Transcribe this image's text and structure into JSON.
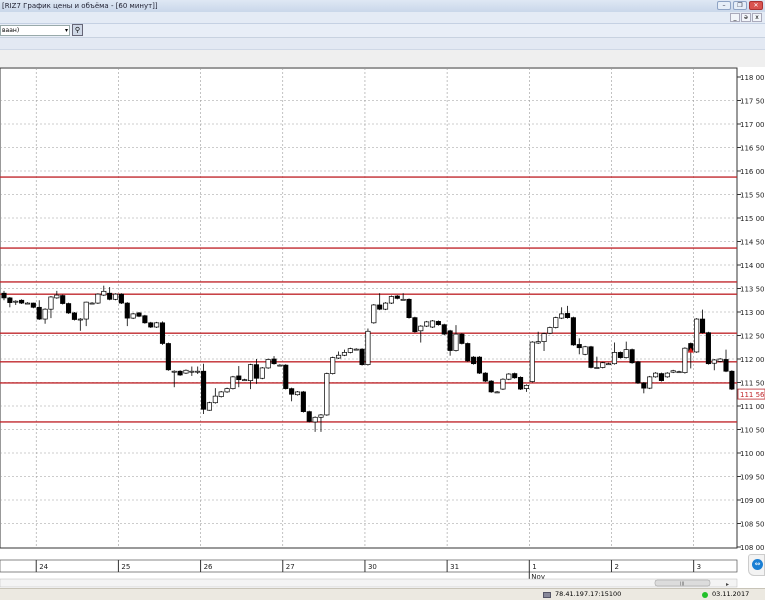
{
  "window": {
    "title": "[RIZ7 График цены и объёма - [60 минут]]",
    "minimize": "–",
    "restore": "❐",
    "close": "✕"
  },
  "mdi": {
    "minimize": "_",
    "restore": "ǝ",
    "close": "x"
  },
  "toolbar": {
    "select_value": "ваан)",
    "select_arrow": "▾",
    "button_icon": "person-icon",
    "button_glyph": "⚲"
  },
  "colors": {
    "up_candle": "#ffffff",
    "down_candle": "#000000",
    "level_line": "#c0282d",
    "grid": "#9a9a9a",
    "last_price": "#c0282d"
  },
  "chart_data": {
    "type": "candlestick",
    "ylim": [
      108000,
      118000
    ],
    "y_ticks": [
      108000,
      108500,
      109000,
      109500,
      110000,
      110500,
      111000,
      111500,
      112000,
      112500,
      113000,
      113500,
      114000,
      114500,
      115000,
      115500,
      116000,
      116500,
      117000,
      117500,
      118000
    ],
    "y_tick_labels": [
      "108 000",
      "108 500",
      "109 000",
      "109 500",
      "110 000",
      "110 500",
      "111 000",
      "111 500",
      "112 000",
      "112 500",
      "113 000",
      "113 500",
      "114 000",
      "114 500",
      "115 000",
      "115 500",
      "116 000",
      "116 500",
      "117 000",
      "117 500",
      "118 000"
    ],
    "x_day_labels": [
      {
        "label": "24",
        "start_index": 6
      },
      {
        "label": "25",
        "start_index": 20
      },
      {
        "label": "26",
        "start_index": 34
      },
      {
        "label": "27",
        "start_index": 48
      },
      {
        "label": "30",
        "start_index": 62
      },
      {
        "label": "31",
        "start_index": 76
      },
      {
        "label": "1",
        "start_index": 90
      },
      {
        "label": "2",
        "start_index": 104
      },
      {
        "label": "3",
        "start_index": 118
      }
    ],
    "month_label": {
      "label": "Nov",
      "day": "1"
    },
    "last_price": "111 560",
    "level_lines": [
      115870,
      114360,
      113640,
      113380,
      112550,
      111940,
      111490,
      110660
    ],
    "marker": {
      "index": 117,
      "price": 112200,
      "color": "#e02020"
    },
    "candles": [
      [
        113400,
        113450,
        113250,
        113300
      ],
      [
        113300,
        113320,
        113100,
        113200
      ],
      [
        113230,
        113250,
        113150,
        113230
      ],
      [
        113250,
        113270,
        113170,
        113190
      ],
      [
        113190,
        113210,
        113170,
        113190
      ],
      [
        113190,
        113200,
        113080,
        113100
      ],
      [
        113100,
        113250,
        112830,
        112850
      ],
      [
        112850,
        113080,
        112750,
        113060
      ],
      [
        113060,
        113340,
        112870,
        113320
      ],
      [
        113300,
        113450,
        113280,
        113360
      ],
      [
        113350,
        113370,
        113160,
        113180
      ],
      [
        113180,
        113200,
        112960,
        112980
      ],
      [
        112980,
        113000,
        112820,
        112840
      ],
      [
        112830,
        112870,
        112600,
        112850
      ],
      [
        112850,
        113220,
        112700,
        113210
      ],
      [
        113190,
        113210,
        113170,
        113190
      ],
      [
        113190,
        113400,
        113170,
        113380
      ],
      [
        113360,
        113560,
        113340,
        113440
      ],
      [
        113400,
        113530,
        113250,
        113270
      ],
      [
        113270,
        113400,
        113250,
        113380
      ],
      [
        113380,
        113400,
        113170,
        113190
      ],
      [
        113190,
        113210,
        112700,
        112870
      ],
      [
        112870,
        112980,
        112850,
        112960
      ],
      [
        112980,
        113000,
        112890,
        112910
      ],
      [
        112920,
        112940,
        112750,
        112770
      ],
      [
        112770,
        112790,
        112660,
        112680
      ],
      [
        112680,
        112790,
        112660,
        112770
      ],
      [
        112770,
        112800,
        112300,
        112330
      ],
      [
        112330,
        112350,
        111750,
        111770
      ],
      [
        111740,
        111760,
        111400,
        111740
      ],
      [
        111740,
        111760,
        111640,
        111660
      ],
      [
        111700,
        111780,
        111680,
        111760
      ],
      [
        111740,
        111840,
        111640,
        111740
      ],
      [
        111740,
        111840,
        111680,
        111740
      ],
      [
        111740,
        111900,
        110830,
        110930
      ],
      [
        110910,
        111090,
        110900,
        111070
      ],
      [
        111070,
        111380,
        111050,
        111210
      ],
      [
        111200,
        111320,
        111180,
        111300
      ],
      [
        111300,
        111390,
        111280,
        111370
      ],
      [
        111370,
        111640,
        111350,
        111620
      ],
      [
        111640,
        111850,
        111400,
        111560
      ],
      [
        111560,
        111580,
        111540,
        111560
      ],
      [
        111540,
        111900,
        111360,
        111880
      ],
      [
        111880,
        112000,
        111470,
        111590
      ],
      [
        111590,
        111830,
        111570,
        111810
      ],
      [
        111810,
        112010,
        111790,
        111990
      ],
      [
        112000,
        112060,
        111880,
        111900
      ],
      [
        111870,
        111890,
        111850,
        111870
      ],
      [
        111870,
        111890,
        111350,
        111370
      ],
      [
        111370,
        111390,
        111100,
        111250
      ],
      [
        111240,
        111320,
        111220,
        111300
      ],
      [
        111300,
        111320,
        110860,
        110880
      ],
      [
        110880,
        110900,
        110650,
        110670
      ],
      [
        110660,
        110780,
        110450,
        110760
      ],
      [
        110760,
        110830,
        110450,
        110810
      ],
      [
        110810,
        111710,
        110790,
        111690
      ],
      [
        111690,
        112050,
        111670,
        112030
      ],
      [
        112020,
        112160,
        112000,
        112080
      ],
      [
        112080,
        112200,
        112060,
        112140
      ],
      [
        112140,
        112240,
        112120,
        112220
      ],
      [
        112210,
        112230,
        112190,
        112210
      ],
      [
        112210,
        112230,
        111860,
        111880
      ],
      [
        111880,
        112650,
        111860,
        112590
      ],
      [
        112770,
        113170,
        112750,
        113150
      ],
      [
        113150,
        113400,
        113040,
        113060
      ],
      [
        113060,
        113210,
        113040,
        113190
      ],
      [
        113190,
        113350,
        113170,
        113330
      ],
      [
        113340,
        113360,
        113270,
        113290
      ],
      [
        113270,
        113400,
        113250,
        113270
      ],
      [
        113270,
        113290,
        112860,
        112880
      ],
      [
        112880,
        112900,
        112560,
        112580
      ],
      [
        112600,
        112720,
        112350,
        112700
      ],
      [
        112700,
        112810,
        112680,
        112790
      ],
      [
        112680,
        112830,
        112660,
        112810
      ],
      [
        112800,
        112820,
        112710,
        112730
      ],
      [
        112730,
        112750,
        112510,
        112530
      ],
      [
        112600,
        112620,
        112070,
        112180
      ],
      [
        112180,
        112720,
        112160,
        112530
      ],
      [
        112530,
        112550,
        112310,
        112330
      ],
      [
        112330,
        112350,
        111940,
        111960
      ],
      [
        112040,
        112060,
        111880,
        111900
      ],
      [
        112040,
        112060,
        111680,
        111700
      ],
      [
        111700,
        111720,
        111510,
        111530
      ],
      [
        111530,
        111550,
        111280,
        111300
      ],
      [
        111300,
        111320,
        111280,
        111300
      ],
      [
        111360,
        111590,
        111340,
        111570
      ],
      [
        111570,
        111700,
        111550,
        111680
      ],
      [
        111690,
        111710,
        111580,
        111600
      ],
      [
        111610,
        111630,
        111340,
        111360
      ],
      [
        111370,
        111460,
        111300,
        111440
      ],
      [
        111520,
        112380,
        111500,
        112360
      ],
      [
        112340,
        112580,
        112320,
        112370
      ],
      [
        112370,
        112560,
        112170,
        112540
      ],
      [
        112550,
        112690,
        112530,
        112670
      ],
      [
        112670,
        112900,
        112650,
        112880
      ],
      [
        112870,
        113100,
        112850,
        112960
      ],
      [
        112970,
        113130,
        112860,
        112880
      ],
      [
        112880,
        112900,
        112280,
        112300
      ],
      [
        112310,
        112440,
        112100,
        112240
      ],
      [
        112100,
        112280,
        112080,
        112260
      ],
      [
        112260,
        112280,
        111800,
        111820
      ],
      [
        111820,
        112050,
        111800,
        111820
      ],
      [
        111820,
        111940,
        111800,
        111920
      ],
      [
        111900,
        111920,
        111880,
        111900
      ],
      [
        111900,
        112350,
        111880,
        112140
      ],
      [
        112140,
        112160,
        112010,
        112030
      ],
      [
        112030,
        112370,
        112010,
        112200
      ],
      [
        112200,
        112220,
        111900,
        111920
      ],
      [
        111940,
        111960,
        111470,
        111490
      ],
      [
        111490,
        111510,
        111270,
        111380
      ],
      [
        111380,
        111640,
        111360,
        111620
      ],
      [
        111620,
        111720,
        111600,
        111700
      ],
      [
        111690,
        111710,
        111520,
        111540
      ],
      [
        111620,
        111720,
        111600,
        111700
      ],
      [
        111720,
        111770,
        111700,
        111750
      ],
      [
        111730,
        111750,
        111710,
        111730
      ],
      [
        111710,
        112250,
        111690,
        112230
      ],
      [
        112330,
        112350,
        111800,
        112150
      ],
      [
        112150,
        112870,
        112130,
        112850
      ],
      [
        112850,
        113050,
        112540,
        112560
      ],
      [
        112560,
        112580,
        111880,
        111900
      ],
      [
        111910,
        112000,
        111760,
        111980
      ],
      [
        111950,
        112020,
        111930,
        112000
      ],
      [
        111990,
        112200,
        111720,
        111740
      ],
      [
        111740,
        111760,
        111340,
        111360
      ]
    ]
  },
  "status": {
    "server": "78.41.197.17:15100",
    "date": "03.11.2017",
    "connection_color": "#22c02a"
  },
  "scrollbar": {
    "thumb_glyph": "III",
    "arrow_right": "▸"
  },
  "teamviewer": {
    "icon": "teamviewer-icon",
    "glyph": "⇔"
  }
}
